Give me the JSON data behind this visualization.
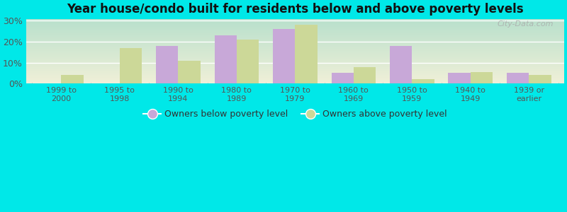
{
  "categories": [
    "1999 to\n2000",
    "1995 to\n1998",
    "1990 to\n1994",
    "1980 to\n1989",
    "1970 to\n1979",
    "1960 to\n1969",
    "1950 to\n1959",
    "1940 to\n1949",
    "1939 or\nearlier"
  ],
  "below": [
    0,
    0,
    18,
    23,
    26,
    5,
    18,
    5,
    5
  ],
  "above": [
    4,
    17,
    11,
    21,
    28,
    8,
    2,
    5.5,
    4
  ],
  "below_color": "#c8a8d8",
  "above_color": "#ccd898",
  "title": "Year house/condo built for residents below and above poverty levels",
  "title_fontsize": 12,
  "ylabel_ticks": [
    "0%",
    "10%",
    "20%",
    "30%"
  ],
  "yticks": [
    0,
    10,
    20,
    30
  ],
  "ylim": [
    0,
    31
  ],
  "grad_top": "#b8e0cc",
  "grad_bottom": "#f0f0d8",
  "outer_bg": "#00e8e8",
  "legend_below": "Owners below poverty level",
  "legend_above": "Owners above poverty level",
  "bar_width": 0.38,
  "watermark": "City-Data.com"
}
